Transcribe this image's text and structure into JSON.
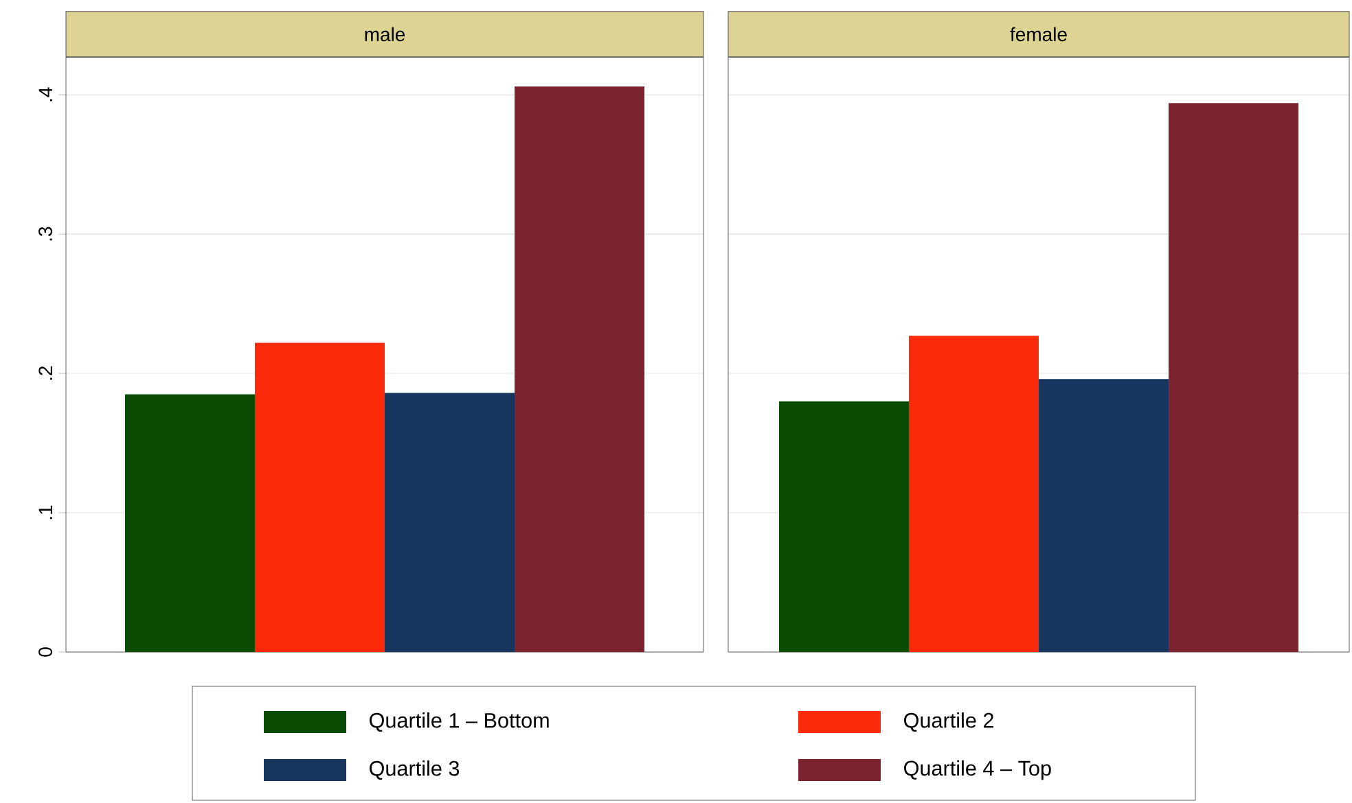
{
  "chart_data": {
    "type": "bar",
    "categories": [
      "male",
      "female"
    ],
    "legend": "bottom",
    "grid": "y",
    "ylim": [
      0,
      0.427
    ],
    "yticks": [
      0,
      {
        "value": 0.1,
        "label": ".1"
      },
      {
        "value": 0.2,
        "label": ".2"
      },
      {
        "value": 0.3,
        "label": ".3"
      },
      {
        "value": 0.4,
        "label": ".4"
      }
    ],
    "series": [
      {
        "name": "Quartile 1 – Bottom",
        "color": "#0b4c05",
        "values": [
          0.185,
          0.18
        ]
      },
      {
        "name": "Quartile 2",
        "color": "#fa2a0a",
        "values": [
          0.222,
          0.227
        ]
      },
      {
        "name": "Quartile 3",
        "color": "#17375e",
        "values": [
          0.186,
          0.196
        ]
      },
      {
        "name": "Quartile 4 – Top",
        "color": "#7b242d",
        "values": [
          0.406,
          0.394
        ]
      }
    ]
  }
}
